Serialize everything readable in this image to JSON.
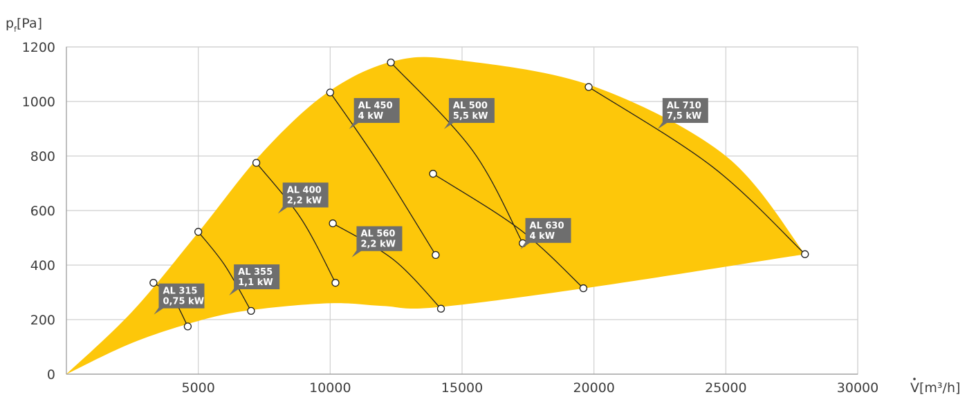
{
  "chart_data": {
    "type": "line",
    "ylabel": {
      "main": "p",
      "sub": "f",
      "unit": "[Pa]"
    },
    "xlabel": {
      "main": "V",
      "unit": "[m³/h]"
    },
    "xlim": [
      0,
      30000
    ],
    "ylim": [
      0,
      1200
    ],
    "x_ticks": [
      "5000",
      "10000",
      "15000",
      "20000",
      "25000",
      "30000"
    ],
    "y_ticks": [
      "0",
      "200",
      "400",
      "600",
      "800",
      "1000",
      "1200"
    ],
    "grid": true,
    "colors": {
      "area": "#fdc70a",
      "tag": "#6e6e6e",
      "curve": "#1e1e1e",
      "grid": "#cfcfcf"
    },
    "envelope": {
      "upper": [
        [
          0,
          0
        ],
        [
          2500,
          230
        ],
        [
          5000,
          520
        ],
        [
          7500,
          820
        ],
        [
          10000,
          1040
        ],
        [
          12500,
          1150
        ],
        [
          15000,
          1150
        ],
        [
          20000,
          1055
        ],
        [
          25000,
          800
        ],
        [
          28000,
          440
        ]
      ],
      "lower": [
        [
          28000,
          440
        ],
        [
          20000,
          320
        ],
        [
          14000,
          245
        ],
        [
          12000,
          250
        ],
        [
          10000,
          260
        ],
        [
          7000,
          235
        ],
        [
          5000,
          195
        ],
        [
          2500,
          115
        ],
        [
          0,
          0
        ]
      ]
    },
    "series": [
      {
        "name": "AL 315",
        "power": "0,75 kW",
        "points": [
          [
            3300,
            335
          ],
          [
            4000,
            285
          ],
          [
            4600,
            175
          ]
        ],
        "label_at": [
          3500,
          330
        ]
      },
      {
        "name": "AL 355",
        "power": "1,1 kW",
        "points": [
          [
            5000,
            522
          ],
          [
            6000,
            400
          ],
          [
            7000,
            232
          ]
        ],
        "label_at": [
          6350,
          400
        ]
      },
      {
        "name": "AL 400",
        "power": "2,2 kW",
        "points": [
          [
            7200,
            775
          ],
          [
            8900,
            570
          ],
          [
            10200,
            335
          ]
        ],
        "label_at": [
          8200,
          700
        ]
      },
      {
        "name": "AL 560",
        "power": "2,2 kW",
        "points": [
          [
            10100,
            553
          ],
          [
            12400,
            420
          ],
          [
            14200,
            240
          ]
        ],
        "label_at": [
          11000,
          540
        ]
      },
      {
        "name": "AL 450",
        "power": "4 kW",
        "points": [
          [
            10000,
            1033
          ],
          [
            11800,
            780
          ],
          [
            14000,
            437
          ]
        ],
        "label_at": [
          10900,
          1010
        ]
      },
      {
        "name": "AL 630",
        "power": "4 kW",
        "points": [
          [
            13900,
            735
          ],
          [
            17200,
            530
          ],
          [
            19600,
            315
          ]
        ],
        "label_at": [
          17400,
          570
        ]
      },
      {
        "name": "AL 500",
        "power": "5,5 kW",
        "points": [
          [
            12300,
            1143
          ],
          [
            15400,
            820
          ],
          [
            17300,
            480
          ]
        ],
        "label_at": [
          14500,
          1010
        ]
      },
      {
        "name": "AL 710",
        "power": "7,5 kW",
        "points": [
          [
            19800,
            1053
          ],
          [
            24500,
            760
          ],
          [
            28000,
            440
          ]
        ],
        "label_at": [
          22600,
          1010
        ]
      }
    ]
  }
}
